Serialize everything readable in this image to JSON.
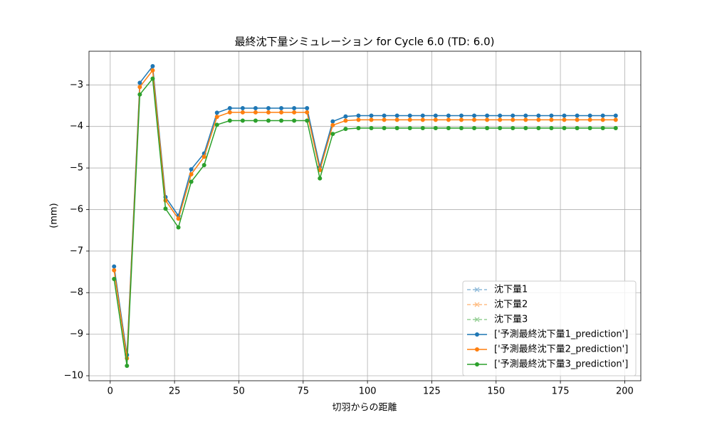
{
  "chart_data": {
    "type": "line",
    "title": "最終沈下量シミュレーション for Cycle 6.0 (TD: 6.0)",
    "xlabel": "切羽からの距離",
    "ylabel": "(mm)",
    "x": [
      1.5,
      6.5,
      11.5,
      16.5,
      21.5,
      26.5,
      31.5,
      36.5,
      41.5,
      46.5,
      51.5,
      56.5,
      61.5,
      66.5,
      71.5,
      76.5,
      81.5,
      86.5,
      91.5,
      96.5,
      101.5,
      106.5,
      111.5,
      116.5,
      121.5,
      126.5,
      131.5,
      136.5,
      141.5,
      146.5,
      151.5,
      156.5,
      161.5,
      166.5,
      171.5,
      176.5,
      181.5,
      186.5,
      191.5,
      196.5
    ],
    "series": [
      {
        "name": "沈下量1",
        "color": "#1f77b4",
        "linestyle": "dashed",
        "marker": "x",
        "alpha": 0.5,
        "values": [
          null,
          null,
          null,
          null,
          null,
          null,
          null,
          null,
          null,
          null,
          null,
          null,
          null,
          null,
          null,
          null,
          null,
          null,
          null,
          null,
          null,
          null,
          null,
          null,
          null,
          null,
          null,
          null,
          null,
          null,
          null,
          null,
          null,
          null,
          null,
          null,
          null,
          null,
          null,
          null
        ]
      },
      {
        "name": "沈下量2",
        "color": "#ff7f0e",
        "linestyle": "dashed",
        "marker": "x",
        "alpha": 0.5,
        "values": [
          null,
          null,
          null,
          null,
          null,
          null,
          null,
          null,
          null,
          null,
          null,
          null,
          null,
          null,
          null,
          null,
          null,
          null,
          null,
          null,
          null,
          null,
          null,
          null,
          null,
          null,
          null,
          null,
          null,
          null,
          null,
          null,
          null,
          null,
          null,
          null,
          null,
          null,
          null,
          null
        ]
      },
      {
        "name": "沈下量3",
        "color": "#2ca02c",
        "linestyle": "dashed",
        "marker": "x",
        "alpha": 0.5,
        "values": [
          null,
          null,
          null,
          null,
          null,
          null,
          null,
          null,
          null,
          null,
          null,
          null,
          null,
          null,
          null,
          null,
          null,
          null,
          null,
          null,
          null,
          null,
          null,
          null,
          null,
          null,
          null,
          null,
          null,
          null,
          null,
          null,
          null,
          null,
          null,
          null,
          null,
          null,
          null,
          null
        ]
      },
      {
        "name": "['予測最終沈下量1_prediction']",
        "color": "#1f77b4",
        "linestyle": "solid",
        "marker": "o",
        "alpha": 1,
        "values": [
          -7.37,
          -9.5,
          -2.95,
          -2.55,
          -5.7,
          -6.15,
          -5.03,
          -4.65,
          -3.67,
          -3.56,
          -3.56,
          -3.56,
          -3.56,
          -3.56,
          -3.56,
          -3.56,
          -4.97,
          -3.88,
          -3.76,
          -3.74,
          -3.74,
          -3.74,
          -3.74,
          -3.74,
          -3.74,
          -3.74,
          -3.74,
          -3.74,
          -3.74,
          -3.74,
          -3.74,
          -3.74,
          -3.74,
          -3.74,
          -3.74,
          -3.74,
          -3.74,
          -3.74,
          -3.74,
          -3.74
        ]
      },
      {
        "name": "['予測最終沈下量2_prediction']",
        "color": "#ff7f0e",
        "linestyle": "solid",
        "marker": "o",
        "alpha": 1,
        "values": [
          -7.46,
          -9.58,
          -3.05,
          -2.65,
          -5.78,
          -6.22,
          -5.15,
          -4.73,
          -3.77,
          -3.66,
          -3.66,
          -3.66,
          -3.66,
          -3.66,
          -3.66,
          -3.66,
          -5.05,
          -3.97,
          -3.86,
          -3.84,
          -3.84,
          -3.84,
          -3.84,
          -3.84,
          -3.84,
          -3.84,
          -3.84,
          -3.84,
          -3.84,
          -3.84,
          -3.84,
          -3.84,
          -3.84,
          -3.84,
          -3.84,
          -3.84,
          -3.84,
          -3.84,
          -3.84,
          -3.84
        ]
      },
      {
        "name": "['予測最終沈下量3_prediction']",
        "color": "#2ca02c",
        "linestyle": "solid",
        "marker": "o",
        "alpha": 1,
        "values": [
          -7.67,
          -9.76,
          -3.23,
          -2.85,
          -5.98,
          -6.43,
          -5.33,
          -4.93,
          -3.96,
          -3.86,
          -3.86,
          -3.86,
          -3.86,
          -3.86,
          -3.86,
          -3.86,
          -5.25,
          -4.18,
          -4.06,
          -4.04,
          -4.04,
          -4.04,
          -4.04,
          -4.04,
          -4.04,
          -4.04,
          -4.04,
          -4.04,
          -4.04,
          -4.04,
          -4.04,
          -4.04,
          -4.04,
          -4.04,
          -4.04,
          -4.04,
          -4.04,
          -4.04,
          -4.04,
          -4.04
        ]
      }
    ],
    "xlim": [
      -8.25,
      206.25
    ],
    "ylim": [
      -10.12,
      -2.19
    ],
    "xticks": [
      0,
      25,
      50,
      75,
      100,
      125,
      150,
      175,
      200
    ],
    "yticks": [
      {
        "value": -10,
        "label": "−10"
      },
      {
        "value": -9,
        "label": "−9"
      },
      {
        "value": -8,
        "label": "−8"
      },
      {
        "value": -7,
        "label": "−7"
      },
      {
        "value": -6,
        "label": "−6"
      },
      {
        "value": -5,
        "label": "−5"
      },
      {
        "value": -4,
        "label": "−4"
      },
      {
        "value": -3,
        "label": "−3"
      }
    ],
    "grid": true,
    "legend": "lower right"
  }
}
